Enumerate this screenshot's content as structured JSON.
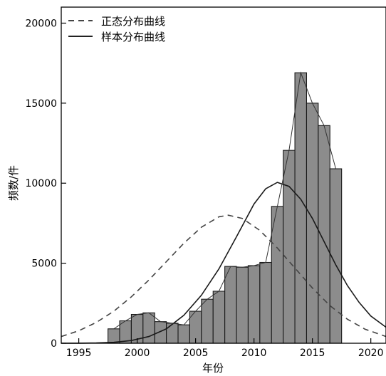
{
  "chart_data": {
    "type": "bar",
    "xlabel": "年份",
    "ylabel": "频数/件",
    "xlim": [
      1993.5,
      2021.3
    ],
    "ylim": [
      0,
      21000
    ],
    "x_ticks": [
      1995,
      2000,
      2005,
      2010,
      2015,
      2020
    ],
    "y_ticks": [
      0,
      5000,
      10000,
      15000,
      20000
    ],
    "grid": false,
    "legend": {
      "position": "top-left",
      "entries": [
        {
          "label": "正态分布曲线",
          "style": "dashed"
        },
        {
          "label": "样本分布曲线",
          "style": "solid"
        }
      ]
    },
    "bar_color": "#8c8c8c",
    "bar_edge_color": "#1a1a1a",
    "bars": [
      {
        "x": 1998,
        "value": 900
      },
      {
        "x": 1999,
        "value": 1400
      },
      {
        "x": 2000,
        "value": 1800
      },
      {
        "x": 2001,
        "value": 1900
      },
      {
        "x": 2002,
        "value": 1350
      },
      {
        "x": 2003,
        "value": 1250
      },
      {
        "x": 2004,
        "value": 1150
      },
      {
        "x": 2005,
        "value": 2000
      },
      {
        "x": 2006,
        "value": 2750
      },
      {
        "x": 2007,
        "value": 3250
      },
      {
        "x": 2008,
        "value": 4800
      },
      {
        "x": 2009,
        "value": 4750
      },
      {
        "x": 2010,
        "value": 4850
      },
      {
        "x": 2011,
        "value": 5050
      },
      {
        "x": 2012,
        "value": 8550
      },
      {
        "x": 2013,
        "value": 12050
      },
      {
        "x": 2014,
        "value": 16900
      },
      {
        "x": 2015,
        "value": 15000
      },
      {
        "x": 2016,
        "value": 13600
      },
      {
        "x": 2017,
        "value": 10900
      }
    ],
    "series": [
      {
        "name": "正态分布曲线",
        "style": "dashed",
        "x": [
          1993.5,
          1995,
          1996.5,
          1998,
          1999.5,
          2001,
          2002.5,
          2004,
          2005.5,
          2007,
          2007.8,
          2009,
          2010.5,
          2012,
          2013.5,
          2015,
          2016.5,
          2018,
          2019.5,
          2021.3
        ],
        "y": [
          420,
          780,
          1300,
          2000,
          2900,
          3950,
          5100,
          6250,
          7250,
          7900,
          8000,
          7800,
          7050,
          5950,
          4700,
          3450,
          2350,
          1500,
          880,
          420
        ]
      },
      {
        "name": "样本分布曲线",
        "style": "solid",
        "x": [
          1993.5,
          1995,
          1996.5,
          1998,
          1999.5,
          2001,
          2002.5,
          2004,
          2005.5,
          2007,
          2008.5,
          2010,
          2011,
          2012,
          2013,
          2014,
          2015,
          2016,
          2017,
          2018,
          2019,
          2020,
          2021.3
        ],
        "y": [
          0,
          5,
          20,
          60,
          170,
          420,
          900,
          1750,
          3000,
          4650,
          6650,
          8700,
          9650,
          10050,
          9800,
          9000,
          7800,
          6350,
          4900,
          3600,
          2550,
          1700,
          1000
        ]
      },
      {
        "name": "频数折线",
        "style": "thin",
        "x": [
          1998,
          1999,
          2000,
          2001,
          2002,
          2003,
          2004,
          2005,
          2006,
          2007,
          2008,
          2009,
          2010,
          2011,
          2012,
          2013,
          2014,
          2015,
          2016,
          2017
        ],
        "y": [
          900,
          1400,
          1800,
          1900,
          1350,
          1250,
          1150,
          2000,
          2750,
          3250,
          4800,
          4750,
          4850,
          5050,
          8550,
          12050,
          16900,
          15000,
          13600,
          10900
        ]
      }
    ]
  }
}
